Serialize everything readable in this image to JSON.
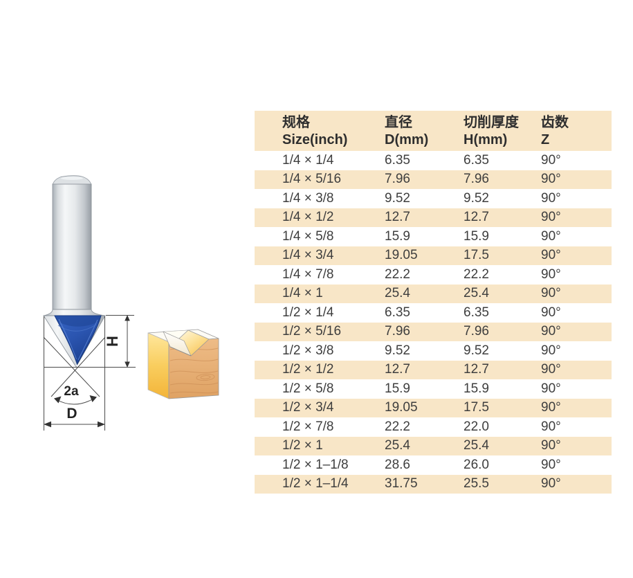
{
  "colors": {
    "stripe_beige": "#f8e6c7",
    "table_text": "#3e3e3e",
    "cutter_blue": "#2b55b0",
    "cutter_blue_dark": "#17387e",
    "metal_light": "#f2f4f6",
    "metal_dark": "#a9b0b7",
    "dimension_line": "#4a4a4a",
    "wood_tan": "#ecb680",
    "wood_grain": "#c98a52",
    "face_yellow": "#f7c14a"
  },
  "diagram": {
    "bit_name": "v-groove-router-bit-drawing",
    "sample_name": "v-groove-wood-cut-sample",
    "labels": {
      "height": "H",
      "angle": "2a",
      "diameter": "D"
    }
  },
  "table": {
    "columns": [
      {
        "zh": "规格",
        "en": "Size(inch)"
      },
      {
        "zh": "直径",
        "en": "D(mm)"
      },
      {
        "zh": "切削厚度",
        "en": "H(mm)"
      },
      {
        "zh": "齿数",
        "en": "Z"
      }
    ],
    "rows": [
      {
        "size": "1/4 × 1/4",
        "d": "6.35",
        "h": "6.35",
        "z": "90°"
      },
      {
        "size": "1/4 × 5/16",
        "d": "7.96",
        "h": "7.96",
        "z": "90°"
      },
      {
        "size": "1/4 × 3/8",
        "d": "9.52",
        "h": "9.52",
        "z": "90°"
      },
      {
        "size": "1/4 × 1/2",
        "d": "12.7",
        "h": "12.7",
        "z": "90°"
      },
      {
        "size": "1/4 × 5/8",
        "d": "15.9",
        "h": "15.9",
        "z": "90°"
      },
      {
        "size": "1/4 × 3/4",
        "d": "19.05",
        "h": "17.5",
        "z": "90°"
      },
      {
        "size": "1/4 × 7/8",
        "d": "22.2",
        "h": "22.2",
        "z": "90°"
      },
      {
        "size": "1/4 × 1",
        "d": "25.4",
        "h": "25.4",
        "z": "90°"
      },
      {
        "size": "1/2 × 1/4",
        "d": "6.35",
        "h": "6.35",
        "z": "90°"
      },
      {
        "size": "1/2 × 5/16",
        "d": "7.96",
        "h": "7.96",
        "z": "90°"
      },
      {
        "size": "1/2 × 3/8",
        "d": "9.52",
        "h": "9.52",
        "z": "90°"
      },
      {
        "size": "1/2 × 1/2",
        "d": "12.7",
        "h": "12.7",
        "z": "90°"
      },
      {
        "size": "1/2 × 5/8",
        "d": "15.9",
        "h": "15.9",
        "z": "90°"
      },
      {
        "size": "1/2 × 3/4",
        "d": "19.05",
        "h": "17.5",
        "z": "90°"
      },
      {
        "size": "1/2 × 7/8",
        "d": "22.2",
        "h": "22.0",
        "z": "90°"
      },
      {
        "size": "1/2 × 1",
        "d": "25.4",
        "h": "25.4",
        "z": "90°"
      },
      {
        "size": "1/2 × 1–1/8",
        "d": "28.6",
        "h": "26.0",
        "z": "90°"
      },
      {
        "size": "1/2 × 1–1/4",
        "d": "31.75",
        "h": "25.5",
        "z": "90°"
      }
    ]
  }
}
